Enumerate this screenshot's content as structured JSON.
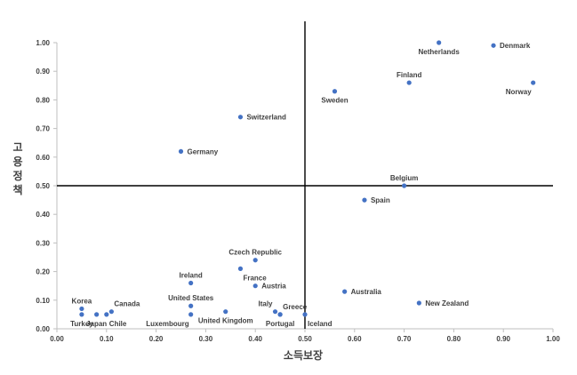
{
  "chart_data": {
    "type": "scatter",
    "title": "",
    "xlabel": "소득보장",
    "ylabel": "고용정책",
    "xlim": [
      0,
      1
    ],
    "ylim": [
      0,
      1
    ],
    "x_ticks": [
      "0.00",
      "0.10",
      "0.20",
      "0.30",
      "0.40",
      "0.50",
      "0.60",
      "0.70",
      "0.80",
      "0.90",
      "1.00"
    ],
    "y_ticks": [
      "0.00",
      "0.10",
      "0.20",
      "0.30",
      "0.40",
      "0.50",
      "0.60",
      "0.70",
      "0.80",
      "0.90",
      "1.00"
    ],
    "reference_lines": {
      "x": 0.5,
      "y": 0.5
    },
    "grid": false,
    "legend": "none",
    "marker_color": "#4472C4",
    "points": [
      {
        "label": "Netherlands",
        "x": 0.77,
        "y": 1.0,
        "anchor": "below"
      },
      {
        "label": "Denmark",
        "x": 0.88,
        "y": 0.99,
        "anchor": "right"
      },
      {
        "label": "Norway",
        "x": 0.96,
        "y": 0.86,
        "anchor": "below-left"
      },
      {
        "label": "Finland",
        "x": 0.71,
        "y": 0.86,
        "anchor": "above"
      },
      {
        "label": "Sweden",
        "x": 0.56,
        "y": 0.83,
        "anchor": "below"
      },
      {
        "label": "Switzerland",
        "x": 0.37,
        "y": 0.74,
        "anchor": "right"
      },
      {
        "label": "Germany",
        "x": 0.25,
        "y": 0.62,
        "anchor": "right"
      },
      {
        "label": "Belgium",
        "x": 0.7,
        "y": 0.5,
        "anchor": "above"
      },
      {
        "label": "Spain",
        "x": 0.62,
        "y": 0.45,
        "anchor": "right"
      },
      {
        "label": "Czech Republic",
        "x": 0.4,
        "y": 0.24,
        "anchor": "above"
      },
      {
        "label": "France",
        "x": 0.37,
        "y": 0.21,
        "anchor": "below-right"
      },
      {
        "label": "Ireland",
        "x": 0.27,
        "y": 0.16,
        "anchor": "above"
      },
      {
        "label": "Austria",
        "x": 0.4,
        "y": 0.15,
        "anchor": "right"
      },
      {
        "label": "Australia",
        "x": 0.58,
        "y": 0.13,
        "anchor": "right"
      },
      {
        "label": "United States",
        "x": 0.27,
        "y": 0.08,
        "anchor": "above"
      },
      {
        "label": "New Zealand",
        "x": 0.73,
        "y": 0.09,
        "anchor": "right"
      },
      {
        "label": "Korea",
        "x": 0.05,
        "y": 0.07,
        "anchor": "above"
      },
      {
        "label": "Canada",
        "x": 0.11,
        "y": 0.06,
        "anchor": "above-right"
      },
      {
        "label": "Turkey",
        "x": 0.05,
        "y": 0.05,
        "anchor": "below"
      },
      {
        "label": "Japan",
        "x": 0.08,
        "y": 0.05,
        "anchor": "below"
      },
      {
        "label": "Chile",
        "x": 0.1,
        "y": 0.05,
        "anchor": "below-right"
      },
      {
        "label": "Luxembourg",
        "x": 0.27,
        "y": 0.05,
        "anchor": "below-left"
      },
      {
        "label": "United Kingdom",
        "x": 0.34,
        "y": 0.06,
        "anchor": "below"
      },
      {
        "label": "Italy",
        "x": 0.44,
        "y": 0.06,
        "anchor": "above-left"
      },
      {
        "label": "Greece",
        "x": 0.45,
        "y": 0.05,
        "anchor": "above-right"
      },
      {
        "label": "Portugal",
        "x": 0.45,
        "y": 0.05,
        "anchor": "below"
      },
      {
        "label": "Iceland",
        "x": 0.5,
        "y": 0.05,
        "anchor": "below-right"
      }
    ]
  }
}
